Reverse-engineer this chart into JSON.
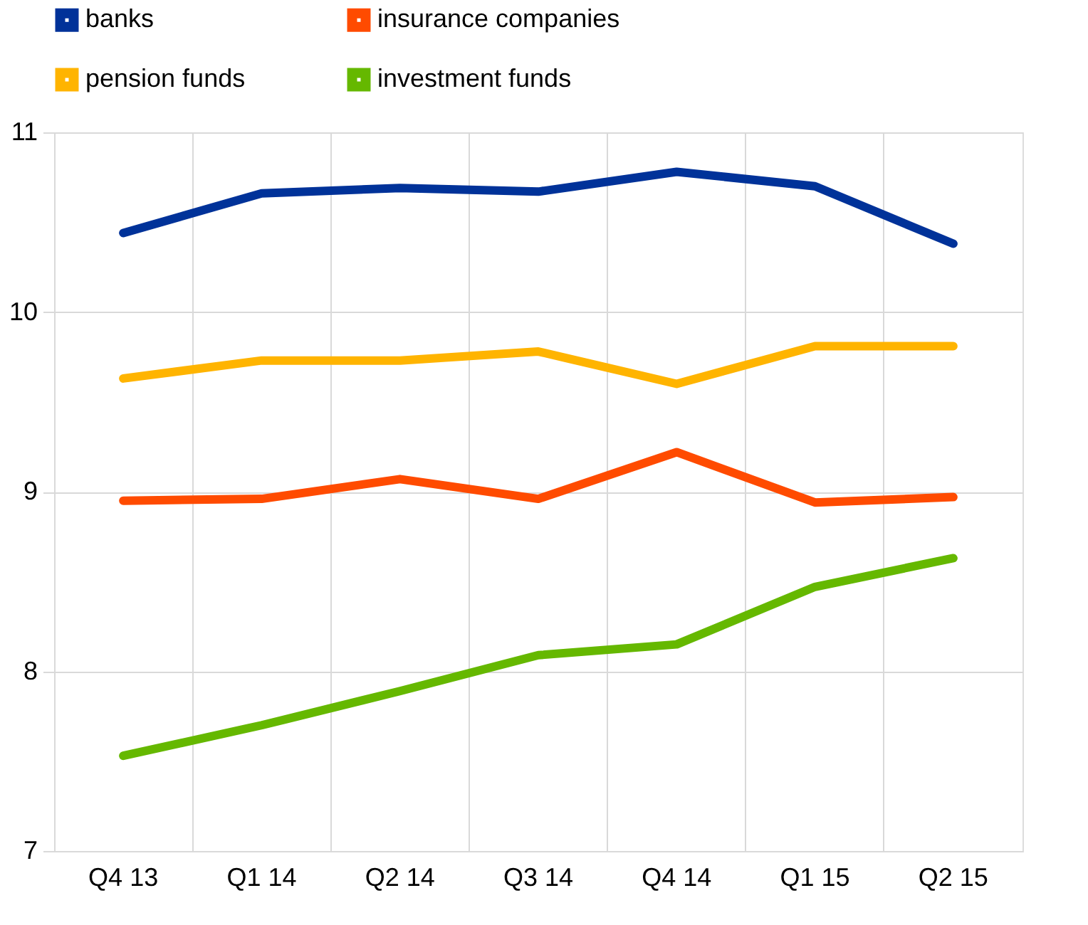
{
  "chart_data": {
    "type": "line",
    "categories": [
      "Q4 13",
      "Q1 14",
      "Q2 14",
      "Q3 14",
      "Q4 14",
      "Q1 15",
      "Q2 15"
    ],
    "series": [
      {
        "name": "banks",
        "color": "#003299",
        "values": [
          10.44,
          10.66,
          10.69,
          10.67,
          10.78,
          10.7,
          10.38
        ]
      },
      {
        "name": "insurance companies",
        "color": "#ff4b00",
        "values": [
          8.95,
          8.96,
          9.07,
          8.96,
          9.22,
          8.94,
          8.97
        ]
      },
      {
        "name": "pension funds",
        "color": "#ffb400",
        "values": [
          9.63,
          9.73,
          9.73,
          9.78,
          9.6,
          9.81,
          9.81
        ]
      },
      {
        "name": "investment funds",
        "color": "#65b800",
        "values": [
          7.53,
          7.7,
          7.89,
          8.09,
          8.15,
          8.47,
          8.63
        ]
      }
    ],
    "ylim": [
      7,
      11
    ],
    "yticks": [
      7,
      8,
      9,
      10,
      11
    ],
    "grid": true,
    "legend": "top left",
    "line_style": "solid",
    "marker": "none"
  }
}
